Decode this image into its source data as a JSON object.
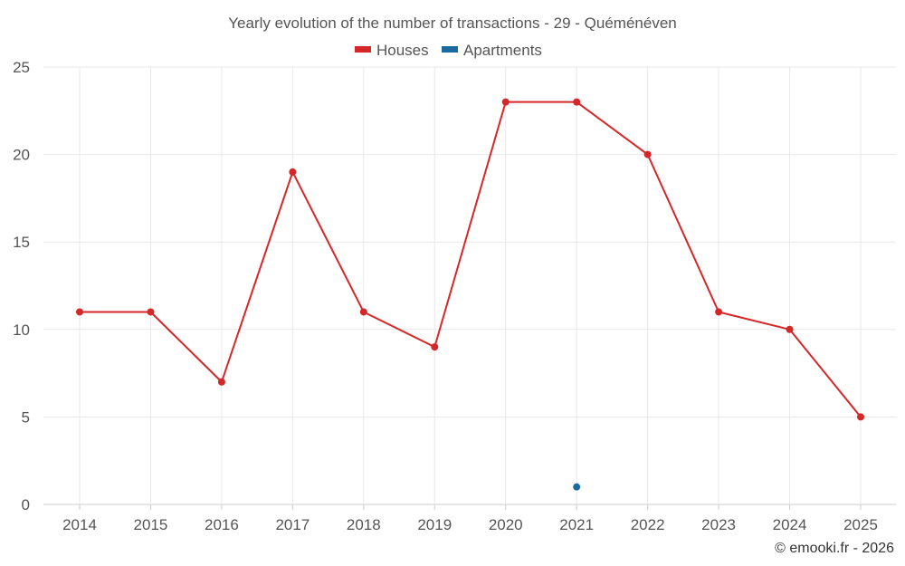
{
  "chart_data": {
    "type": "line",
    "title": "Yearly evolution of the number of transactions - 29 - Quéménéven",
    "categories": [
      "2014",
      "2015",
      "2016",
      "2017",
      "2018",
      "2019",
      "2020",
      "2021",
      "2022",
      "2023",
      "2024",
      "2025"
    ],
    "series": [
      {
        "name": "Houses",
        "color": "#d62728",
        "values": [
          11,
          11,
          7,
          19,
          11,
          9,
          23,
          23,
          20,
          11,
          10,
          5
        ]
      },
      {
        "name": "Apartments",
        "color": "#1a6aa0",
        "values": [
          null,
          null,
          null,
          null,
          null,
          null,
          null,
          1,
          null,
          null,
          null,
          null
        ]
      }
    ],
    "ylim": [
      0,
      25
    ],
    "yticks": [
      0,
      5,
      10,
      15,
      20,
      25
    ],
    "xlabel": "",
    "ylabel": "",
    "grid": true,
    "legend_position": "top-center"
  },
  "credit": "© emooki.fr - 2026"
}
